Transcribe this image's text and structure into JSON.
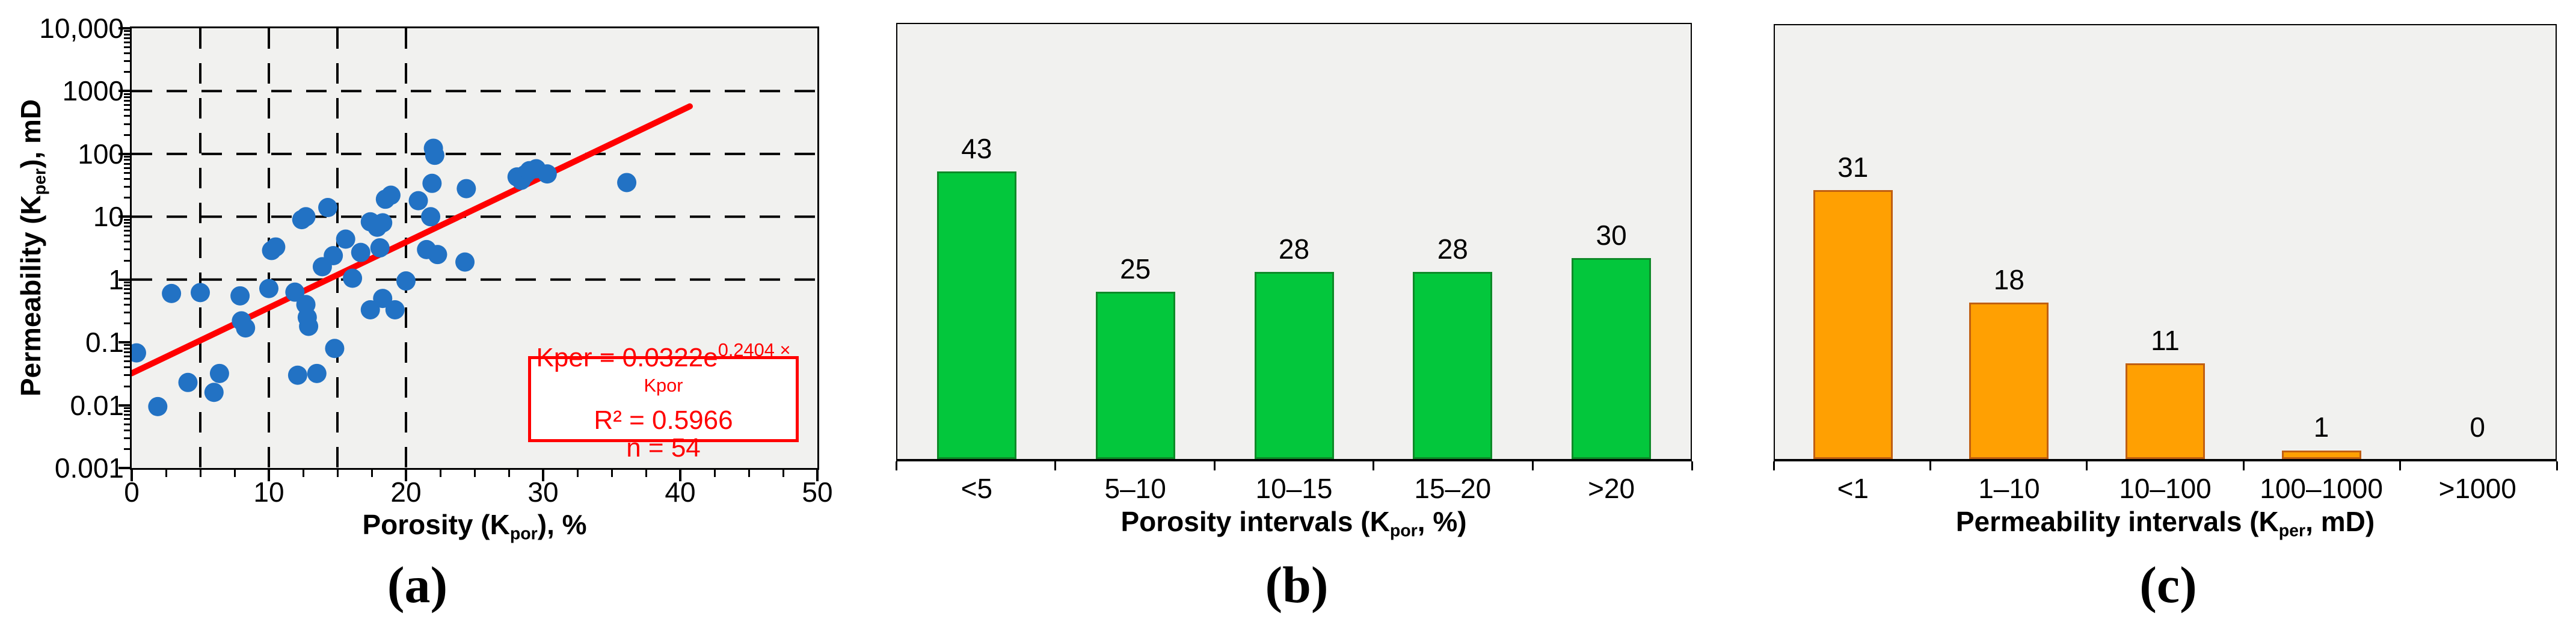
{
  "colors": {
    "dot_blue": "#2272c4",
    "trend_red": "#ff0000",
    "bar_green_fill": "#03c73c",
    "bar_green_border": "#0e8a28",
    "bar_orange_fill": "#ffa002",
    "bar_orange_border": "#c05f12",
    "plot_background": "#f1f1ef",
    "axis_black": "#000000"
  },
  "panel_a": {
    "letter": "(a)",
    "y_title": {
      "pre": "Permeability (K",
      "sub": "per",
      "post": "), mD"
    },
    "x_title": {
      "pre": "Porosity (K",
      "sub": "por",
      "post": "), %"
    },
    "equation": {
      "line1_pre": "Kper = 0.0322e",
      "line1_sup": "0.2404 × Kpor",
      "line2": "R² = 0.5966",
      "line3": "n = 54"
    }
  },
  "panel_b": {
    "letter": "(b)",
    "x_title": {
      "pre": "Porosity intervals (K",
      "sub": "por",
      "post": ", %)"
    }
  },
  "panel_c": {
    "letter": "(c)",
    "x_title": {
      "pre": "Permeability intervals (K",
      "sub": "per",
      "post": ", mD)"
    }
  },
  "chart_data": [
    {
      "id": "scatter_permeability_vs_porosity",
      "type": "scatter",
      "xlabel": "Porosity (Kpor), %",
      "ylabel": "Permeability (Kper), mD",
      "x_range": [
        0,
        50
      ],
      "y_range_log": [
        0.001,
        10000
      ],
      "x_ticks": [
        "0",
        "10",
        "20",
        "30",
        "40",
        "50"
      ],
      "y_ticks": [
        "10,000",
        "1000",
        "100",
        "10",
        "1",
        "0.1",
        "0.01",
        "0.001"
      ],
      "x_gridlines": [
        5,
        10,
        15,
        20
      ],
      "y_gridlines": [
        1000,
        100,
        10,
        1
      ],
      "grid_style": "dashed",
      "legend": "none",
      "points": [
        [
          0.35,
          0.068
        ],
        [
          1.9,
          0.0095
        ],
        [
          2.9,
          0.6
        ],
        [
          4.1,
          0.023
        ],
        [
          5.0,
          0.62
        ],
        [
          6.0,
          0.016
        ],
        [
          6.4,
          0.032
        ],
        [
          7.9,
          0.55
        ],
        [
          8.0,
          0.22
        ],
        [
          8.3,
          0.17
        ],
        [
          10.0,
          0.72
        ],
        [
          10.2,
          2.9
        ],
        [
          10.5,
          3.3
        ],
        [
          11.9,
          0.63
        ],
        [
          12.1,
          0.03
        ],
        [
          12.4,
          9.0
        ],
        [
          12.7,
          10.0
        ],
        [
          12.7,
          0.4
        ],
        [
          12.8,
          0.25
        ],
        [
          12.9,
          0.18
        ],
        [
          13.5,
          0.032
        ],
        [
          13.9,
          1.6
        ],
        [
          14.3,
          14
        ],
        [
          14.7,
          2.4
        ],
        [
          14.8,
          0.08
        ],
        [
          15.6,
          4.4
        ],
        [
          16.1,
          1.05
        ],
        [
          16.7,
          2.7
        ],
        [
          17.4,
          8.3
        ],
        [
          17.4,
          0.33
        ],
        [
          17.9,
          6.8
        ],
        [
          18.1,
          3.2
        ],
        [
          18.3,
          8.0
        ],
        [
          18.3,
          0.5
        ],
        [
          18.5,
          19
        ],
        [
          18.9,
          22
        ],
        [
          19.2,
          0.33
        ],
        [
          20.0,
          0.95
        ],
        [
          20.9,
          18
        ],
        [
          21.5,
          3.0
        ],
        [
          21.8,
          10
        ],
        [
          22.0,
          123
        ],
        [
          22.1,
          95
        ],
        [
          21.9,
          34
        ],
        [
          22.3,
          2.5
        ],
        [
          24.3,
          1.9
        ],
        [
          24.4,
          28
        ],
        [
          28.1,
          43
        ],
        [
          28.4,
          38
        ],
        [
          28.7,
          47
        ],
        [
          29.0,
          54
        ],
        [
          29.5,
          58
        ],
        [
          30.3,
          48
        ],
        [
          36.1,
          35
        ]
      ],
      "trend": {
        "equation": "Kper = 0.0322e^(0.2404 × Kpor)",
        "a": 0.0322,
        "b": 0.2404,
        "x_start": 0,
        "x_end": 40.7,
        "r2": 0.5966,
        "n": 54
      }
    },
    {
      "id": "histogram_porosity_intervals",
      "type": "bar",
      "categories": [
        "<5",
        "5–10",
        "10–15",
        "15–20",
        ">20"
      ],
      "values": [
        43,
        25,
        28,
        28,
        30
      ],
      "xlabel": "Porosity intervals (Kpor, %)",
      "ylabel": "",
      "ylim": [
        0,
        65
      ],
      "grid": "off",
      "legend": "none"
    },
    {
      "id": "histogram_permeability_intervals",
      "type": "bar",
      "categories": [
        "<1",
        "1–10",
        "10–100",
        "100–1000",
        ">1000"
      ],
      "values": [
        31,
        18,
        11,
        1,
        0
      ],
      "xlabel": "Permeability intervals (Kper, mD)",
      "ylabel": "",
      "ylim": [
        0,
        50
      ],
      "grid": "off",
      "legend": "none"
    }
  ]
}
